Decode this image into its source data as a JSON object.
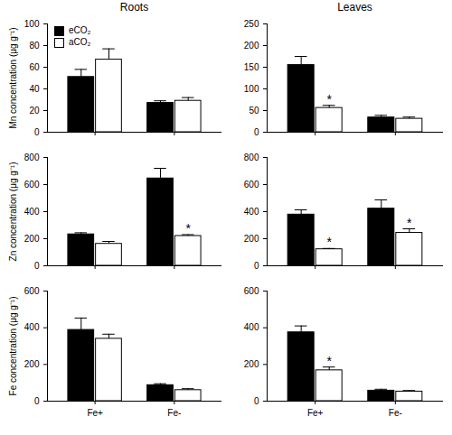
{
  "chart_data": [
    {
      "type": "bar",
      "title": "Roots",
      "y_label": "Mn concentration (μg g⁻¹)",
      "legend": "top-left",
      "categories": [
        null,
        null
      ],
      "ylim": [
        0,
        100
      ],
      "yticks": [
        0,
        20,
        40,
        60,
        80,
        100
      ],
      "series": [
        {
          "name": "eCO₂",
          "color": "#000000",
          "values": [
            51,
            27
          ],
          "errors": [
            7,
            2
          ],
          "annotations": [
            null,
            null
          ]
        },
        {
          "name": "aCO₂",
          "color": "#ffffff",
          "values": [
            67,
            29
          ],
          "errors": [
            10,
            3
          ],
          "annotations": [
            null,
            null
          ]
        }
      ]
    },
    {
      "type": "bar",
      "title": "Leaves",
      "categories": [
        null,
        null
      ],
      "ylim": [
        0,
        250
      ],
      "yticks": [
        0,
        50,
        100,
        150,
        200,
        250
      ],
      "series": [
        {
          "name": "eCO₂",
          "color": "#000000",
          "values": [
            155,
            34
          ],
          "errors": [
            20,
            5
          ],
          "annotations": [
            null,
            null
          ]
        },
        {
          "name": "aCO₂",
          "color": "#ffffff",
          "values": [
            56,
            31
          ],
          "errors": [
            6,
            4
          ],
          "annotations": [
            "*",
            null
          ]
        }
      ]
    },
    {
      "type": "bar",
      "y_label": "Zn concentration (μg g⁻¹)",
      "categories": [
        null,
        null
      ],
      "ylim": [
        0,
        800
      ],
      "yticks": [
        0,
        200,
        400,
        600,
        800
      ],
      "series": [
        {
          "name": "eCO₂",
          "color": "#000000",
          "values": [
            232,
            645
          ],
          "errors": [
            12,
            75
          ],
          "annotations": [
            null,
            null
          ]
        },
        {
          "name": "aCO₂",
          "color": "#ffffff",
          "values": [
            162,
            220
          ],
          "errors": [
            18,
            10
          ],
          "annotations": [
            null,
            "*"
          ]
        }
      ]
    },
    {
      "type": "bar",
      "categories": [
        null,
        null
      ],
      "ylim": [
        0,
        800
      ],
      "yticks": [
        0,
        200,
        400,
        600,
        800
      ],
      "series": [
        {
          "name": "eCO₂",
          "color": "#000000",
          "values": [
            378,
            422
          ],
          "errors": [
            35,
            65
          ],
          "annotations": [
            null,
            null
          ]
        },
        {
          "name": "aCO₂",
          "color": "#ffffff",
          "values": [
            122,
            243
          ],
          "errors": [
            6,
            30
          ],
          "annotations": [
            "*",
            "*"
          ]
        }
      ]
    },
    {
      "type": "bar",
      "y_label": "Fe concentration (μg g⁻¹)",
      "categories": [
        "Fe+",
        "Fe-"
      ],
      "ylim": [
        0,
        600
      ],
      "yticks": [
        0,
        200,
        400,
        600
      ],
      "series": [
        {
          "name": "eCO₂",
          "color": "#000000",
          "values": [
            388,
            87
          ],
          "errors": [
            65,
            8
          ],
          "annotations": [
            null,
            null
          ]
        },
        {
          "name": "aCO₂",
          "color": "#ffffff",
          "values": [
            340,
            60
          ],
          "errors": [
            25,
            8
          ],
          "annotations": [
            null,
            null
          ]
        }
      ]
    },
    {
      "type": "bar",
      "categories": [
        "Fe+",
        "Fe-"
      ],
      "ylim": [
        0,
        600
      ],
      "yticks": [
        0,
        200,
        400,
        600
      ],
      "series": [
        {
          "name": "eCO₂",
          "color": "#000000",
          "values": [
            375,
            57
          ],
          "errors": [
            35,
            8
          ],
          "annotations": [
            null,
            null
          ]
        },
        {
          "name": "aCO₂",
          "color": "#ffffff",
          "values": [
            168,
            52
          ],
          "errors": [
            18,
            6
          ],
          "annotations": [
            "*",
            null
          ]
        }
      ]
    }
  ]
}
